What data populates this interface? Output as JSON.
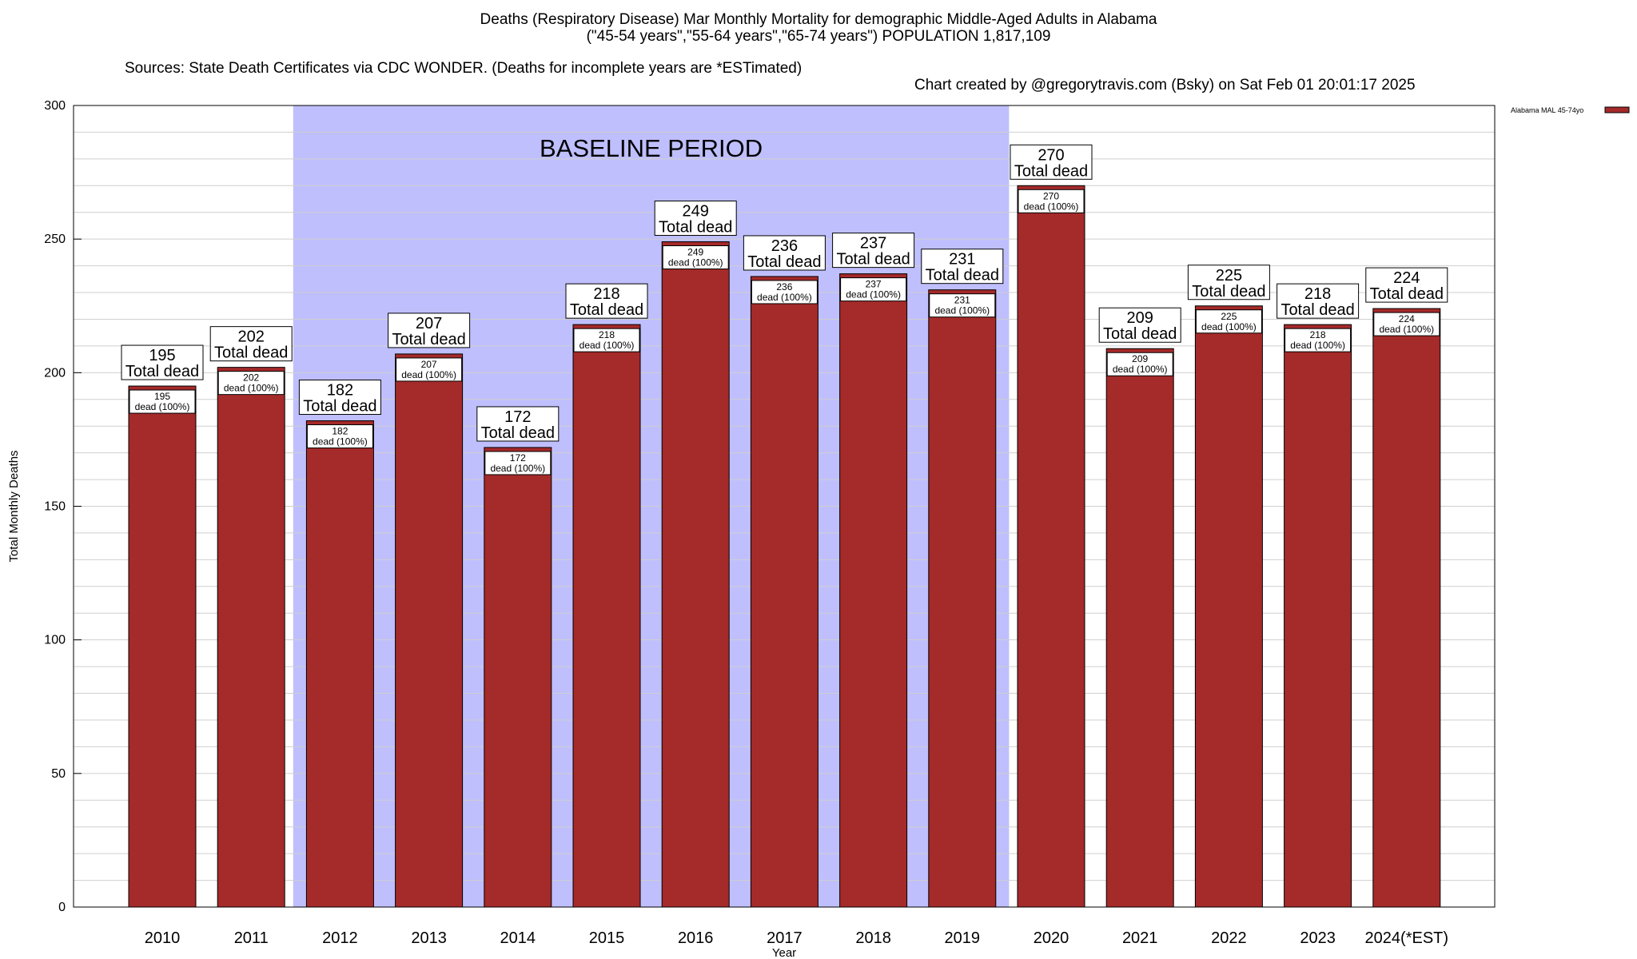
{
  "header": {
    "title": "Deaths (Respiratory Disease) Mar Monthly Mortality for demographic Middle-Aged Adults in Alabama",
    "subtitle": "(\"45-54 years\",\"55-64 years\",\"65-74 years\") POPULATION 1,817,109",
    "sources": "Sources: State Death Certificates via CDC WONDER. (Deaths for incomplete years are *ESTimated)",
    "credit": "Chart created by @gregorytravis.com (Bsky) on Sat Feb 01 20:01:17 2025"
  },
  "chart_data": {
    "type": "bar",
    "xlabel": "Year",
    "ylabel": "Total Monthly Deaths",
    "ylim": [
      0,
      300
    ],
    "yticks": [
      0,
      50,
      100,
      150,
      200,
      250,
      300
    ],
    "grid": true,
    "categories": [
      "2010",
      "2011",
      "2012",
      "2013",
      "2014",
      "2015",
      "2016",
      "2017",
      "2018",
      "2019",
      "2020",
      "2021",
      "2022",
      "2023",
      "2024(*EST)"
    ],
    "series": [
      {
        "name": "Alabama MAL 45-74yo",
        "color": "#a52a2a",
        "values": [
          195,
          202,
          182,
          207,
          172,
          218,
          249,
          236,
          237,
          231,
          270,
          209,
          225,
          218,
          224
        ]
      }
    ],
    "top_labels": [
      "195",
      "202",
      "182",
      "207",
      "172",
      "218",
      "249",
      "236",
      "237",
      "231",
      "270",
      "209",
      "225",
      "218",
      "224"
    ],
    "top_label_suffix": "Total dead",
    "inner_labels": [
      "195",
      "202",
      "182",
      "207",
      "172",
      "218",
      "249",
      "236",
      "237",
      "231",
      "270",
      "209",
      "225",
      "218",
      "224"
    ],
    "inner_label_suffix": "dead (100%)",
    "baseline": {
      "label": "BASELINE PERIOD",
      "from": "2012",
      "to": "2019",
      "color": "#bfbffe"
    },
    "legend_position": "top-right"
  }
}
